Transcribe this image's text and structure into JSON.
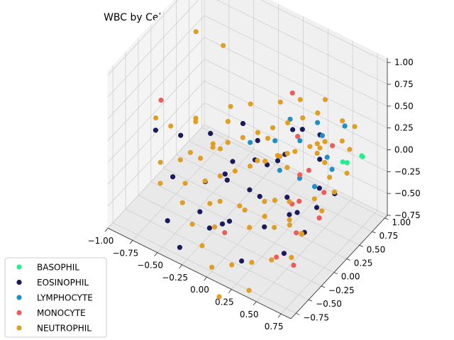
{
  "chart_data": {
    "type": "scatter",
    "projection": "3d",
    "title": "WBC by Cell Type",
    "xlabel": "",
    "ylabel": "",
    "zlabel": "",
    "xlim": [
      -1.0,
      0.85
    ],
    "ylim": [
      -0.85,
      1.05
    ],
    "zlim": [
      -0.75,
      1.05
    ],
    "x_ticks": [
      "−1.00",
      "−0.75",
      "−0.50",
      "−0.25",
      "0.00",
      "0.25",
      "0.50",
      "0.75"
    ],
    "x_tick_values": [
      -1.0,
      -0.75,
      -0.5,
      -0.25,
      0.0,
      0.25,
      0.5,
      0.75
    ],
    "y_ticks": [
      "−0.75",
      "−0.50",
      "−0.25",
      "0.00",
      "0.25",
      "0.50",
      "0.75",
      "1.00"
    ],
    "y_tick_values": [
      -0.75,
      -0.5,
      -0.25,
      0.0,
      0.25,
      0.5,
      0.75,
      1.0
    ],
    "z_ticks": [
      "−0.75",
      "−0.50",
      "−0.25",
      "0.00",
      "0.25",
      "0.50",
      "0.75",
      "1.00"
    ],
    "z_tick_values": [
      -0.75,
      -0.5,
      -0.25,
      0.0,
      0.25,
      0.5,
      0.75,
      1.0
    ],
    "grid": true,
    "legend_position": "lower-left",
    "series": [
      {
        "name": "BASOPHIL",
        "color": "#22f08a",
        "points": [
          [
            0.78,
            0.7,
            0.1
          ],
          [
            0.74,
            0.76,
            0.05
          ],
          [
            0.62,
            0.62,
            0.0
          ],
          [
            0.7,
            0.55,
            0.08
          ]
        ]
      },
      {
        "name": "EOSINOPHIL",
        "color": "#1b1a5c",
        "points": [
          [
            -0.85,
            -0.2,
            0.05
          ],
          [
            -0.6,
            -0.35,
            -0.25
          ],
          [
            -0.45,
            0.1,
            0.05
          ],
          [
            -0.3,
            -0.4,
            -0.45
          ],
          [
            -0.2,
            -0.1,
            -0.15
          ],
          [
            0.0,
            0.1,
            0.0
          ],
          [
            0.1,
            -0.2,
            -0.1
          ],
          [
            0.2,
            0.3,
            0.05
          ],
          [
            0.35,
            0.05,
            -0.2
          ],
          [
            0.5,
            0.4,
            0.1
          ],
          [
            0.6,
            0.2,
            -0.05
          ],
          [
            -0.1,
            -0.6,
            -0.4
          ],
          [
            0.05,
            -0.5,
            -0.3
          ],
          [
            0.3,
            -0.3,
            -0.35
          ],
          [
            0.45,
            -0.1,
            -0.25
          ],
          [
            -0.55,
            -0.55,
            -0.6
          ],
          [
            -0.35,
            -0.7,
            -0.7
          ],
          [
            0.15,
            0.55,
            0.15
          ],
          [
            0.4,
            0.6,
            0.2
          ],
          [
            -0.05,
            0.25,
            0.1
          ],
          [
            0.25,
            -0.65,
            -0.55
          ],
          [
            0.55,
            -0.4,
            -0.45
          ],
          [
            -0.25,
            0.35,
            0.12
          ],
          [
            0.65,
            0.05,
            -0.15
          ],
          [
            -0.7,
            0.0,
            -0.05
          ],
          [
            0.1,
            0.0,
            -0.3
          ],
          [
            -0.15,
            -0.25,
            -0.6
          ],
          [
            0.35,
            0.25,
            -0.5
          ],
          [
            0.05,
            0.45,
            -0.2
          ],
          [
            -0.4,
            -0.1,
            -0.35
          ],
          [
            0.2,
            -0.05,
            0.15
          ],
          [
            -0.05,
            -0.35,
            0.02
          ],
          [
            0.5,
            0.1,
            -0.55
          ],
          [
            0.3,
            0.45,
            0.3
          ],
          [
            -0.2,
            0.05,
            -0.1
          ],
          [
            0.6,
            0.5,
            -0.3
          ]
        ]
      },
      {
        "name": "LYMPHOCYTE",
        "color": "#1f8fc4",
        "points": [
          [
            0.1,
            0.3,
            0.15
          ],
          [
            0.3,
            0.4,
            0.2
          ],
          [
            0.45,
            0.55,
            0.25
          ],
          [
            0.55,
            0.45,
            0.12
          ],
          [
            -0.1,
            0.2,
            0.08
          ],
          [
            0.25,
            0.1,
            0.02
          ],
          [
            0.6,
            0.7,
            0.35
          ],
          [
            0.4,
            0.2,
            -0.05
          ],
          [
            0.65,
            0.35,
            0.1
          ],
          [
            0.15,
            0.5,
            0.3
          ],
          [
            0.35,
            0.65,
            0.28
          ],
          [
            0.5,
            0.3,
            -0.15
          ]
        ]
      },
      {
        "name": "MONOCYTE",
        "color": "#ec5d5a",
        "points": [
          [
            -0.95,
            0.1,
            0.15
          ],
          [
            0.75,
            -0.3,
            0.55
          ],
          [
            0.8,
            -0.1,
            0.2
          ],
          [
            0.6,
            -0.2,
            0.05
          ],
          [
            0.7,
            -0.45,
            -0.1
          ],
          [
            0.25,
            0.35,
            0.75
          ],
          [
            0.55,
            -0.55,
            -0.4
          ],
          [
            0.4,
            0.05,
            -0.25
          ],
          [
            -0.05,
            -0.4,
            -0.55
          ],
          [
            0.2,
            0.55,
            0.1
          ],
          [
            0.5,
            0.65,
            0.1
          ],
          [
            0.65,
            0.1,
            -0.3
          ],
          [
            0.35,
            0.3,
            -0.1
          ],
          [
            0.75,
            -0.6,
            -0.35
          ]
        ]
      },
      {
        "name": "NEUTROPHIL",
        "color": "#e09f24",
        "points": [
          [
            -0.7,
            0.3,
            0.95
          ],
          [
            -0.45,
            0.35,
            0.9
          ],
          [
            -0.9,
            -0.1,
            0.1
          ],
          [
            -0.8,
            0.0,
            0.0
          ],
          [
            -0.65,
            0.2,
            0.05
          ],
          [
            -0.55,
            -0.1,
            -0.1
          ],
          [
            -0.4,
            0.05,
            -0.05
          ],
          [
            -0.3,
            0.15,
            0.0
          ],
          [
            -0.2,
            0.25,
            0.05
          ],
          [
            -0.1,
            0.35,
            0.1
          ],
          [
            0.0,
            0.45,
            0.15
          ],
          [
            0.1,
            0.55,
            0.2
          ],
          [
            0.2,
            0.65,
            0.25
          ],
          [
            0.3,
            0.75,
            0.3
          ],
          [
            0.4,
            0.6,
            0.05
          ],
          [
            0.5,
            0.5,
            0.0
          ],
          [
            0.6,
            0.4,
            -0.05
          ],
          [
            0.7,
            0.3,
            -0.1
          ],
          [
            -0.75,
            -0.3,
            -0.2
          ],
          [
            -0.6,
            -0.2,
            -0.15
          ],
          [
            -0.5,
            0.0,
            -0.2
          ],
          [
            -0.35,
            -0.2,
            -0.25
          ],
          [
            -0.25,
            -0.1,
            -0.2
          ],
          [
            -0.15,
            0.0,
            -0.15
          ],
          [
            -0.05,
            0.1,
            -0.1
          ],
          [
            0.05,
            0.2,
            -0.05
          ],
          [
            0.15,
            0.3,
            0.0
          ],
          [
            0.25,
            0.4,
            0.05
          ],
          [
            0.35,
            0.5,
            0.1
          ],
          [
            0.45,
            0.6,
            0.15
          ],
          [
            0.55,
            0.2,
            -0.2
          ],
          [
            0.65,
            0.15,
            -0.25
          ],
          [
            -0.45,
            -0.45,
            -0.4
          ],
          [
            -0.3,
            -0.55,
            -0.5
          ],
          [
            -0.15,
            -0.65,
            -0.6
          ],
          [
            0.0,
            -0.75,
            -0.7
          ],
          [
            0.15,
            -0.65,
            -0.65
          ],
          [
            0.3,
            -0.55,
            -0.6
          ],
          [
            0.45,
            -0.45,
            -0.55
          ],
          [
            0.6,
            -0.35,
            -0.5
          ],
          [
            0.1,
            -0.8,
            -0.95
          ],
          [
            0.35,
            -0.7,
            -0.8
          ],
          [
            -0.2,
            -0.4,
            -0.3
          ],
          [
            0.05,
            -0.3,
            -0.25
          ],
          [
            0.25,
            -0.2,
            -0.15
          ],
          [
            0.45,
            -0.1,
            -0.1
          ],
          [
            -0.4,
            0.4,
            0.2
          ],
          [
            -0.25,
            0.5,
            0.25
          ],
          [
            0.0,
            0.6,
            0.35
          ],
          [
            0.15,
            0.7,
            0.4
          ],
          [
            0.35,
            0.8,
            0.45
          ],
          [
            0.55,
            0.75,
            0.35
          ],
          [
            0.7,
            0.6,
            0.2
          ],
          [
            0.75,
            0.45,
            0.05
          ],
          [
            -0.6,
            0.1,
            0.1
          ],
          [
            -0.35,
            0.25,
            0.15
          ],
          [
            0.2,
            0.1,
            -0.35
          ],
          [
            0.4,
            0.0,
            -0.4
          ],
          [
            0.55,
            -0.05,
            -0.45
          ],
          [
            -0.1,
            -0.5,
            -0.45
          ],
          [
            0.3,
            0.15,
            0.05
          ],
          [
            0.1,
            0.35,
            -0.05
          ],
          [
            -0.05,
            0.45,
            0.0
          ],
          [
            0.5,
            0.35,
            0.2
          ],
          [
            0.65,
            0.55,
            0.3
          ],
          [
            -0.7,
            -0.4,
            -0.35
          ],
          [
            -0.5,
            -0.3,
            -0.3
          ],
          [
            0.2,
            -0.4,
            -0.35
          ],
          [
            0.4,
            -0.3,
            -0.3
          ],
          [
            0.6,
            -0.15,
            -0.35
          ],
          [
            -0.3,
            0.0,
            0.02
          ],
          [
            0.05,
            0.05,
            0.05
          ],
          [
            0.25,
            0.25,
            0.12
          ],
          [
            0.45,
            0.45,
            0.22
          ],
          [
            0.7,
            0.7,
            0.4
          ],
          [
            -0.2,
            -0.2,
            -0.4
          ],
          [
            0.0,
            -0.1,
            -0.45
          ],
          [
            0.15,
            0.0,
            -0.5
          ],
          [
            0.35,
            0.1,
            -0.55
          ],
          [
            -0.45,
            0.15,
            -0.1
          ]
        ]
      }
    ]
  }
}
